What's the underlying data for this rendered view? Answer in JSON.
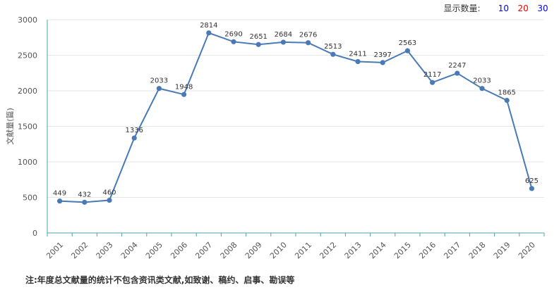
{
  "display_count": {
    "label": "显示数量:",
    "options": [
      {
        "text": "10",
        "color": "#0000ee"
      },
      {
        "text": "20",
        "color": "#ee0000"
      },
      {
        "text": "30",
        "color": "#0000ee"
      }
    ]
  },
  "note": "注:年度总文献量的统计不包含资讯类文献,如致谢、稿约、启事、勘误等",
  "chart_data": {
    "type": "line",
    "title": "",
    "xlabel": "",
    "ylabel": "文献量(篇)",
    "x": [
      "2001",
      "2002",
      "2003",
      "2004",
      "2005",
      "2006",
      "2007",
      "2008",
      "2009",
      "2010",
      "2011",
      "2012",
      "2013",
      "2014",
      "2015",
      "2016",
      "2017",
      "2018",
      "2019",
      "2020"
    ],
    "series": [
      {
        "values": [
          449,
          432,
          460,
          1336,
          2033,
          1948,
          2814,
          2690,
          2651,
          2684,
          2676,
          2513,
          2411,
          2397,
          2563,
          2117,
          2247,
          2033,
          1865,
          625
        ]
      }
    ],
    "ylim": [
      0,
      3000
    ],
    "yticks": [
      0,
      500,
      1000,
      1500,
      2000,
      2500,
      3000
    ],
    "grid": true,
    "legend": "none",
    "colors": {
      "line": "#4a7ab5",
      "point": "#4a7ab5",
      "axis": "#4aa3a8",
      "grid": "#e6e6e6"
    }
  }
}
